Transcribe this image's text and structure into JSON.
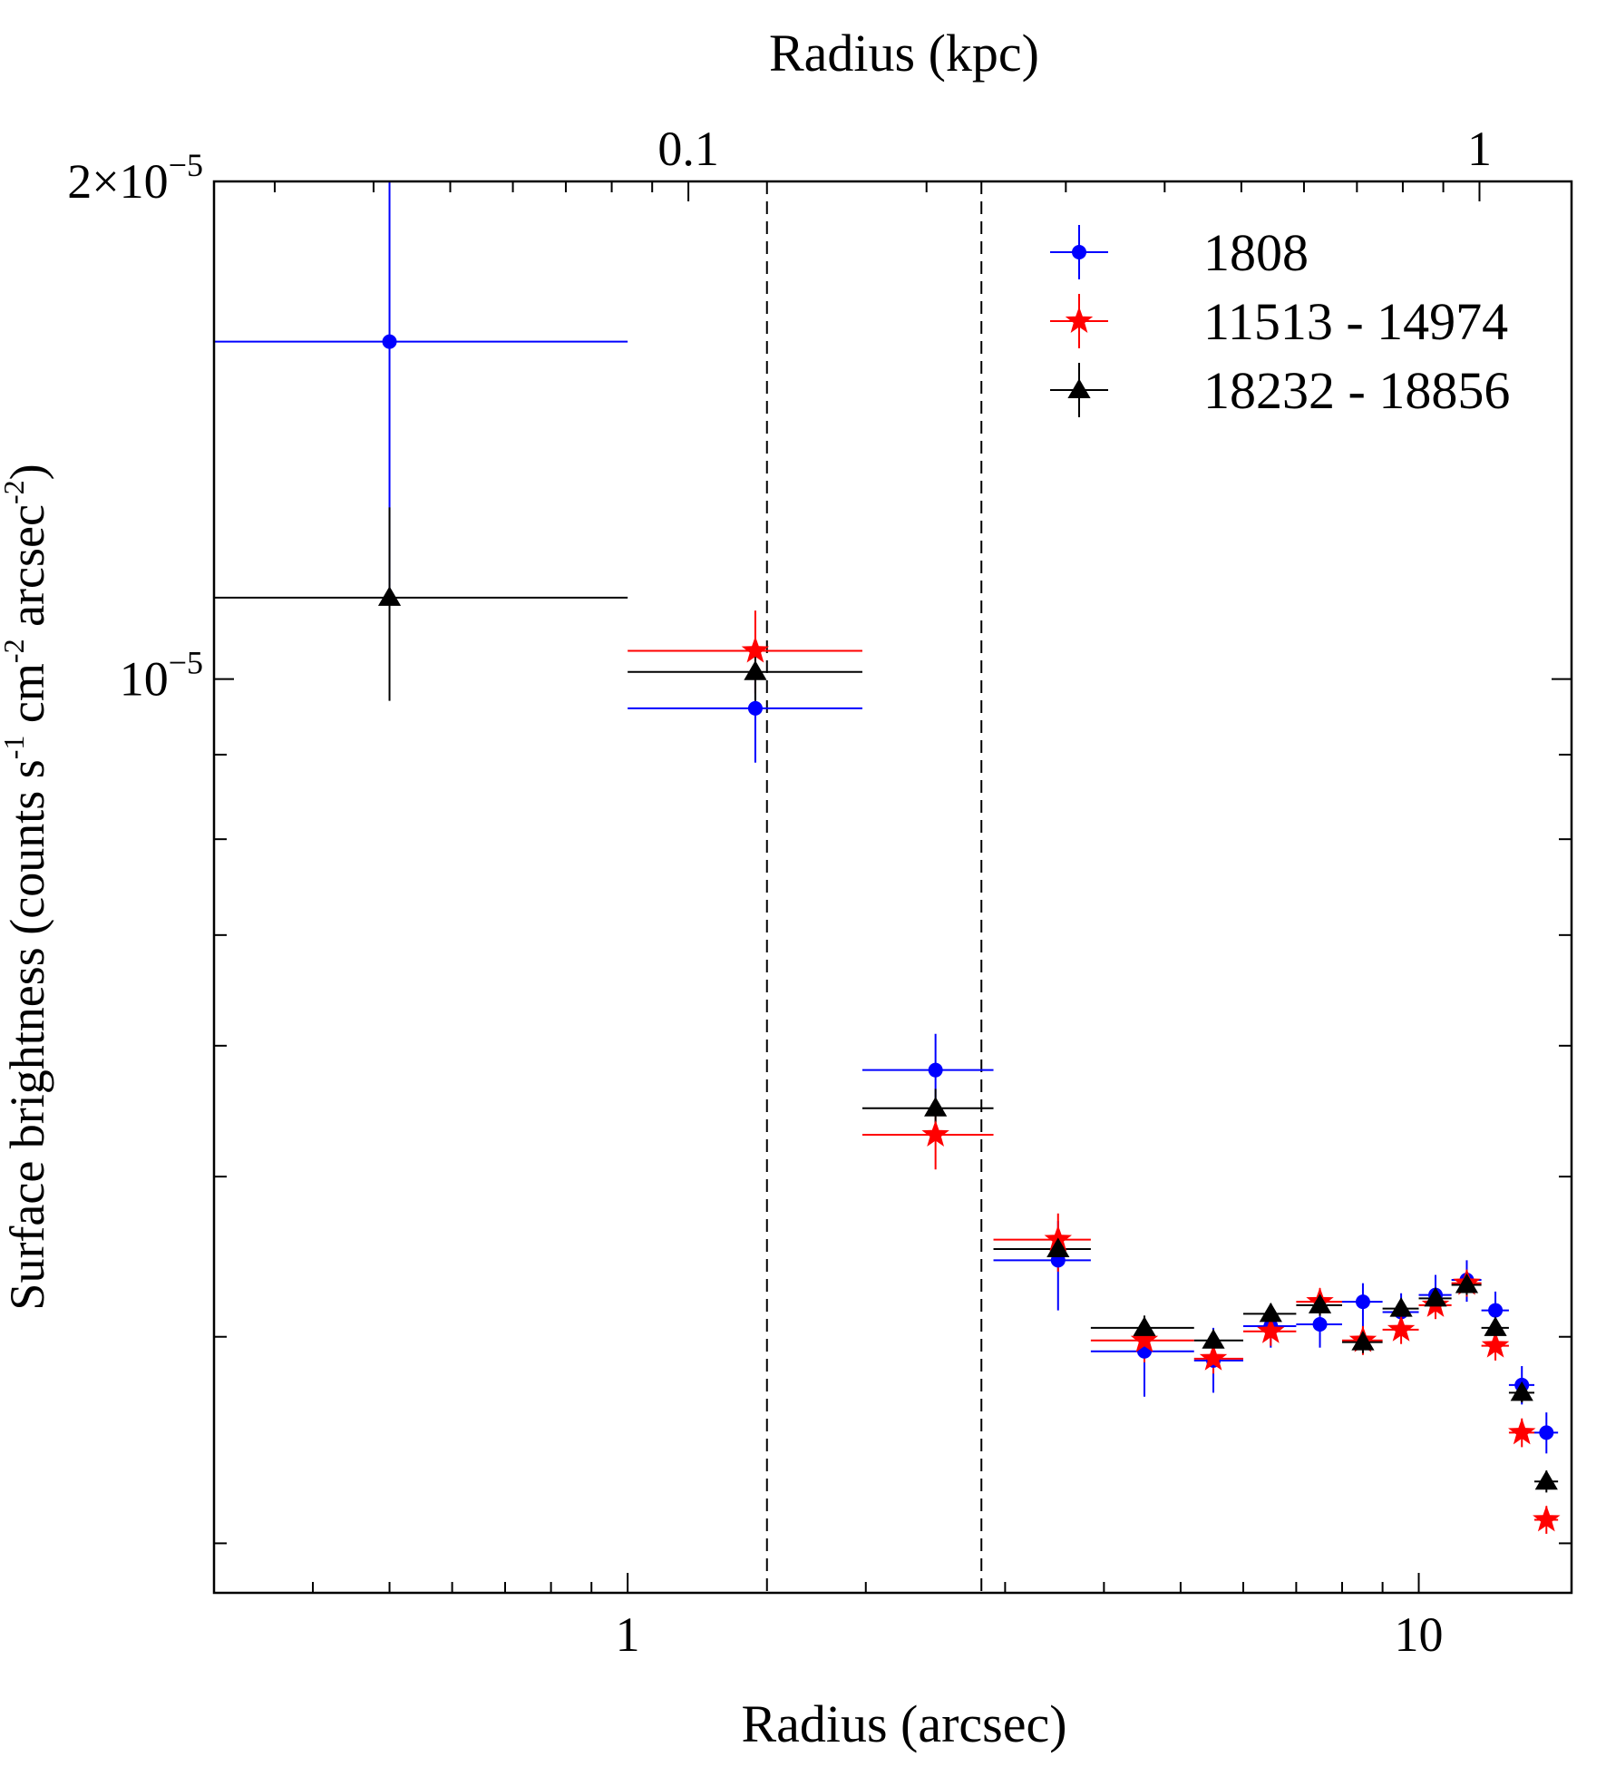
{
  "chart_data": {
    "type": "scatter",
    "title": "",
    "xlabel": "Radius (arcsec)",
    "ylabel_parts": [
      "Surface brightness (counts s",
      "-1",
      " cm",
      "-2",
      " arcsec",
      "-2",
      ")"
    ],
    "top_xlabel": "Radius (kpc)",
    "x_scale": "log",
    "y_scale": "log",
    "xlim": [
      0.3,
      15.6
    ],
    "ylim": [
      2.8e-06,
      2e-05
    ],
    "top_axis": {
      "kpc_per_arcsec": 0.0838,
      "ticks": [
        0.1,
        1
      ],
      "tick_labels": [
        "0.1",
        "1"
      ]
    },
    "x_ticks": [
      1,
      10
    ],
    "x_tick_labels": [
      "1",
      "10"
    ],
    "y_tick_labels": [
      {
        "value": 1e-05,
        "mantissa": "",
        "exp": "−5"
      },
      {
        "value": 2e-05,
        "mantissa": "2×",
        "exp": "−5"
      }
    ],
    "reference_lines_x": [
      1.5,
      2.8
    ],
    "legend_position": "top-right",
    "series": [
      {
        "name": "1808",
        "color": "#0000ff",
        "marker": "circle",
        "points": [
          {
            "x": 0.5,
            "xlo": 0.3,
            "xhi": 1.0,
            "y": 1.6e-05,
            "ylo": 1.12e-05,
            "yhi": 2e-05
          },
          {
            "x": 1.45,
            "xlo": 1.0,
            "xhi": 1.98,
            "y": 9.6e-06,
            "ylo": 8.9e-06,
            "yhi": 1.02e-05
          },
          {
            "x": 2.45,
            "xlo": 1.98,
            "xhi": 2.9,
            "y": 5.8e-06,
            "ylo": 5.5e-06,
            "yhi": 6.1e-06
          },
          {
            "x": 3.5,
            "xlo": 2.9,
            "xhi": 3.85,
            "y": 4.45e-06,
            "ylo": 4.15e-06,
            "yhi": 4.7e-06
          },
          {
            "x": 4.5,
            "xlo": 3.85,
            "xhi": 5.2,
            "y": 3.92e-06,
            "ylo": 3.68e-06,
            "yhi": 4.1e-06
          },
          {
            "x": 5.5,
            "xlo": 5.2,
            "xhi": 6.0,
            "y": 3.87e-06,
            "ylo": 3.7e-06,
            "yhi": 4.05e-06
          },
          {
            "x": 6.5,
            "xlo": 6.0,
            "xhi": 7.0,
            "y": 4.06e-06,
            "ylo": 3.94e-06,
            "yhi": 4.18e-06
          },
          {
            "x": 7.5,
            "xlo": 7.0,
            "xhi": 8.0,
            "y": 4.07e-06,
            "ylo": 3.94e-06,
            "yhi": 4.19e-06
          },
          {
            "x": 8.5,
            "xlo": 8.0,
            "xhi": 9.0,
            "y": 4.2e-06,
            "ylo": 4e-06,
            "yhi": 4.31e-06
          },
          {
            "x": 9.5,
            "xlo": 9.0,
            "xhi": 10.0,
            "y": 4.14e-06,
            "ylo": 4.02e-06,
            "yhi": 4.25e-06
          },
          {
            "x": 10.5,
            "xlo": 10.0,
            "xhi": 11.0,
            "y": 4.24e-06,
            "ylo": 4.13e-06,
            "yhi": 4.36e-06
          },
          {
            "x": 11.5,
            "xlo": 11.0,
            "xhi": 12.0,
            "y": 4.33e-06,
            "ylo": 4.2e-06,
            "yhi": 4.45e-06
          },
          {
            "x": 12.5,
            "xlo": 12.0,
            "xhi": 13.0,
            "y": 4.15e-06,
            "ylo": 4.03e-06,
            "yhi": 4.26e-06
          },
          {
            "x": 13.5,
            "xlo": 13.0,
            "xhi": 14.0,
            "y": 3.74e-06,
            "ylo": 3.64e-06,
            "yhi": 3.84e-06
          },
          {
            "x": 14.5,
            "xlo": 14.0,
            "xhi": 15.0,
            "y": 3.5e-06,
            "ylo": 3.4e-06,
            "yhi": 3.6e-06
          }
        ]
      },
      {
        "name": "11513 - 14974",
        "color": "#ff0000",
        "marker": "star",
        "points": [
          {
            "x": 1.45,
            "xlo": 1.0,
            "xhi": 1.98,
            "y": 1.04e-05,
            "ylo": 9.8e-06,
            "yhi": 1.1e-05
          },
          {
            "x": 2.45,
            "xlo": 1.98,
            "xhi": 2.9,
            "y": 5.3e-06,
            "ylo": 5.05e-06,
            "yhi": 5.55e-06
          },
          {
            "x": 3.5,
            "xlo": 2.9,
            "xhi": 3.85,
            "y": 4.58e-06,
            "ylo": 4.38e-06,
            "yhi": 4.75e-06
          },
          {
            "x": 4.5,
            "xlo": 3.85,
            "xhi": 5.2,
            "y": 3.98e-06,
            "ylo": 3.86e-06,
            "yhi": 4.1e-06
          },
          {
            "x": 5.5,
            "xlo": 5.2,
            "xhi": 6.0,
            "y": 3.88e-06,
            "ylo": 3.8e-06,
            "yhi": 3.96e-06
          },
          {
            "x": 6.5,
            "xlo": 6.0,
            "xhi": 7.0,
            "y": 4.03e-06,
            "ylo": 3.95e-06,
            "yhi": 4.11e-06
          },
          {
            "x": 7.5,
            "xlo": 7.0,
            "xhi": 8.0,
            "y": 4.2e-06,
            "ylo": 4.12e-06,
            "yhi": 4.28e-06
          },
          {
            "x": 8.5,
            "xlo": 8.0,
            "xhi": 9.0,
            "y": 3.98e-06,
            "ylo": 3.9e-06,
            "yhi": 4.06e-06
          },
          {
            "x": 9.5,
            "xlo": 9.0,
            "xhi": 10.0,
            "y": 4.04e-06,
            "ylo": 3.96e-06,
            "yhi": 4.12e-06
          },
          {
            "x": 10.5,
            "xlo": 10.0,
            "xhi": 11.0,
            "y": 4.18e-06,
            "ylo": 4.1e-06,
            "yhi": 4.26e-06
          },
          {
            "x": 11.5,
            "xlo": 11.0,
            "xhi": 12.0,
            "y": 4.31e-06,
            "ylo": 4.23e-06,
            "yhi": 4.39e-06
          },
          {
            "x": 12.5,
            "xlo": 12.0,
            "xhi": 13.0,
            "y": 3.95e-06,
            "ylo": 3.87e-06,
            "yhi": 4.03e-06
          },
          {
            "x": 13.5,
            "xlo": 13.0,
            "xhi": 14.0,
            "y": 3.5e-06,
            "ylo": 3.43e-06,
            "yhi": 3.57e-06
          },
          {
            "x": 14.5,
            "xlo": 14.0,
            "xhi": 15.0,
            "y": 3.1e-06,
            "ylo": 3.04e-06,
            "yhi": 3.16e-06
          }
        ]
      },
      {
        "name": "18232 - 18856",
        "color": "#000000",
        "marker": "triangle",
        "points": [
          {
            "x": 0.5,
            "xlo": 0.3,
            "xhi": 1.0,
            "y": 1.12e-05,
            "ylo": 9.7e-06,
            "yhi": 1.27e-05
          },
          {
            "x": 1.45,
            "xlo": 1.0,
            "xhi": 1.98,
            "y": 1.01e-05,
            "ylo": 9.7e-06,
            "yhi": 1.05e-05
          },
          {
            "x": 2.45,
            "xlo": 1.98,
            "xhi": 2.9,
            "y": 5.5e-06,
            "ylo": 5.35e-06,
            "yhi": 5.65e-06
          },
          {
            "x": 3.5,
            "xlo": 2.9,
            "xhi": 3.85,
            "y": 4.52e-06,
            "ylo": 4.42e-06,
            "yhi": 4.62e-06
          },
          {
            "x": 4.5,
            "xlo": 3.85,
            "xhi": 5.2,
            "y": 4.05e-06,
            "ylo": 3.98e-06,
            "yhi": 4.12e-06
          },
          {
            "x": 5.5,
            "xlo": 5.2,
            "xhi": 6.0,
            "y": 3.98e-06,
            "ylo": 3.92e-06,
            "yhi": 4.04e-06
          },
          {
            "x": 6.5,
            "xlo": 6.0,
            "xhi": 7.0,
            "y": 4.13e-06,
            "ylo": 4.07e-06,
            "yhi": 4.19e-06
          },
          {
            "x": 7.5,
            "xlo": 7.0,
            "xhi": 8.0,
            "y": 4.18e-06,
            "ylo": 4.12e-06,
            "yhi": 4.24e-06
          },
          {
            "x": 8.5,
            "xlo": 8.0,
            "xhi": 9.0,
            "y": 3.97e-06,
            "ylo": 3.91e-06,
            "yhi": 4.03e-06
          },
          {
            "x": 9.5,
            "xlo": 9.0,
            "xhi": 10.0,
            "y": 4.16e-06,
            "ylo": 4.1e-06,
            "yhi": 4.22e-06
          },
          {
            "x": 10.5,
            "xlo": 10.0,
            "xhi": 11.0,
            "y": 4.22e-06,
            "ylo": 4.16e-06,
            "yhi": 4.28e-06
          },
          {
            "x": 11.5,
            "xlo": 11.0,
            "xhi": 12.0,
            "y": 4.3e-06,
            "ylo": 4.24e-06,
            "yhi": 4.36e-06
          },
          {
            "x": 12.5,
            "xlo": 12.0,
            "xhi": 13.0,
            "y": 4.05e-06,
            "ylo": 3.99e-06,
            "yhi": 4.11e-06
          },
          {
            "x": 13.5,
            "xlo": 13.0,
            "xhi": 14.0,
            "y": 3.7e-06,
            "ylo": 3.65e-06,
            "yhi": 3.75e-06
          },
          {
            "x": 14.5,
            "xlo": 14.0,
            "xhi": 15.0,
            "y": 3.27e-06,
            "ylo": 3.22e-06,
            "yhi": 3.32e-06
          }
        ]
      }
    ]
  }
}
